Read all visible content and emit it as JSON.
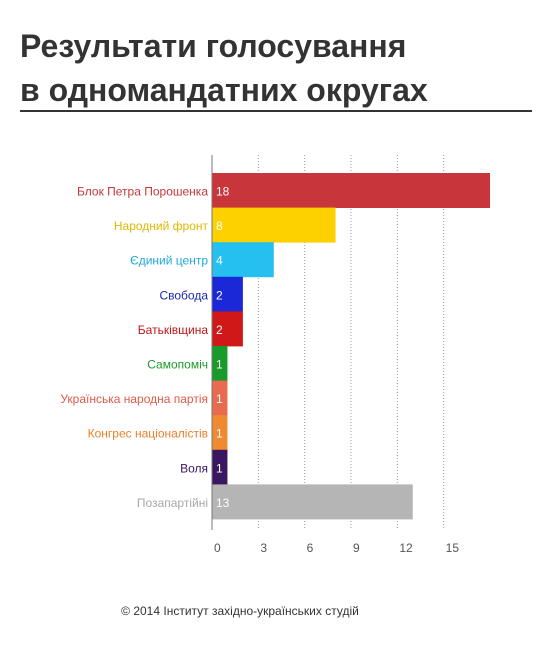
{
  "title_line1": "Результати голосування",
  "title_line2": "в одномандатних округах",
  "footer": "© 2014 Інститут західно-українських студій",
  "chart_data": {
    "type": "bar",
    "orientation": "horizontal",
    "title": "Результати голосування в одномандатних округах",
    "categories": [
      "Блок Петра Порошенка",
      "Народний фронт",
      "Єдиний центр",
      "Свобода",
      "Батьківщина",
      "Самопоміч",
      "Українська народна партія",
      "Конгрес націоналістів",
      "Воля",
      "Позапартійні"
    ],
    "values": [
      18,
      8,
      4,
      2,
      2,
      1,
      1,
      1,
      1,
      13
    ],
    "colors": [
      "#c8353a",
      "#fdd100",
      "#26c0f0",
      "#1a28d8",
      "#d01818",
      "#1a9a2a",
      "#e86b50",
      "#f08a30",
      "#3a1560",
      "#b5b5b5"
    ],
    "label_colors": [
      "#c8353a",
      "#e0b800",
      "#20a8dc",
      "#1a28b0",
      "#c01515",
      "#1a9a2a",
      "#e05a48",
      "#e8802a",
      "#3a1560",
      "#a8a8a8"
    ],
    "xticks": [
      0,
      3,
      6,
      9,
      12,
      15
    ],
    "xlim": [
      0,
      18
    ],
    "grid": true
  }
}
